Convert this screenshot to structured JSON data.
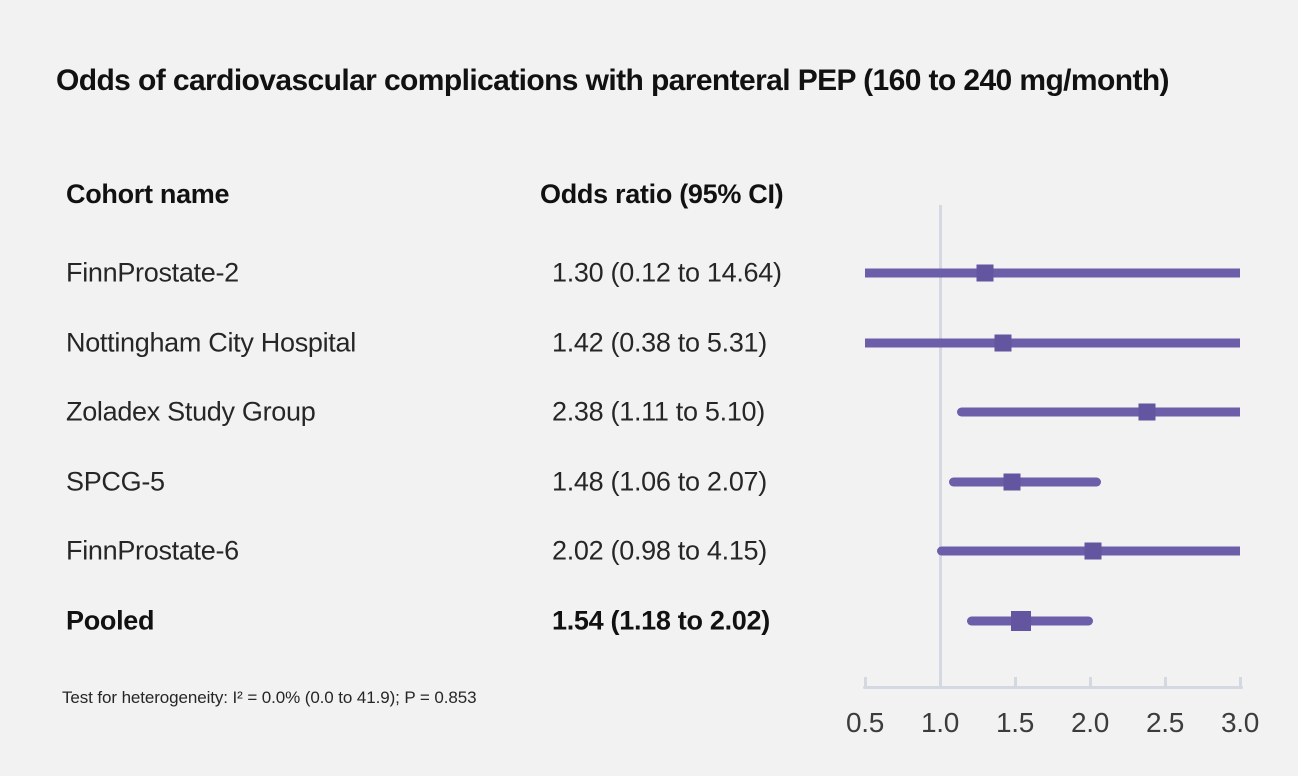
{
  "title": "Odds of cardiovascular complications with parenteral PEP (160 to 240 mg/month)",
  "columns": {
    "cohort": "Cohort name",
    "odds": "Odds ratio (95% CI)"
  },
  "footer": "Test for heterogeneity: I² = 0.0% (0.0 to 41.9); P = 0.853",
  "colors": {
    "background": "#f2f2f2",
    "ci_line": "#6c5ea9",
    "marker": "#63559f",
    "axis": "#d3d8e1",
    "text": "#111111"
  },
  "chart_data": {
    "type": "forest",
    "title": "Odds of cardiovascular complications with parenteral PEP (160 to 240 mg/month)",
    "xlabel": "",
    "ylabel": "",
    "xlim": [
      0.5,
      3.0
    ],
    "reference_line": 1.0,
    "ticks": [
      {
        "value": 0.5,
        "label": "0.5"
      },
      {
        "value": 1.0,
        "label": "1.0"
      },
      {
        "value": 1.5,
        "label": "1.5"
      },
      {
        "value": 2.0,
        "label": "2.0"
      },
      {
        "value": 2.5,
        "label": "2.5"
      },
      {
        "value": 3.0,
        "label": "3.0"
      }
    ],
    "rows": [
      {
        "label": "FinnProstate-2",
        "display": "1.30 (0.12 to 14.64)",
        "or": 1.3,
        "ci_low": 0.12,
        "ci_high": 14.64,
        "pooled": false
      },
      {
        "label": "Nottingham City Hospital",
        "display": "1.42 (0.38 to 5.31)",
        "or": 1.42,
        "ci_low": 0.38,
        "ci_high": 5.31,
        "pooled": false
      },
      {
        "label": "Zoladex Study Group",
        "display": "2.38 (1.11 to 5.10)",
        "or": 2.38,
        "ci_low": 1.11,
        "ci_high": 5.1,
        "pooled": false
      },
      {
        "label": "SPCG-5",
        "display": "1.48 (1.06 to 2.07)",
        "or": 1.48,
        "ci_low": 1.06,
        "ci_high": 2.07,
        "pooled": false
      },
      {
        "label": "FinnProstate-6",
        "display": "2.02 (0.98 to 4.15)",
        "or": 2.02,
        "ci_low": 0.98,
        "ci_high": 4.15,
        "pooled": false
      },
      {
        "label": "Pooled",
        "display": "1.54 (1.18 to 2.02)",
        "or": 1.54,
        "ci_low": 1.18,
        "ci_high": 2.02,
        "pooled": true
      }
    ]
  }
}
